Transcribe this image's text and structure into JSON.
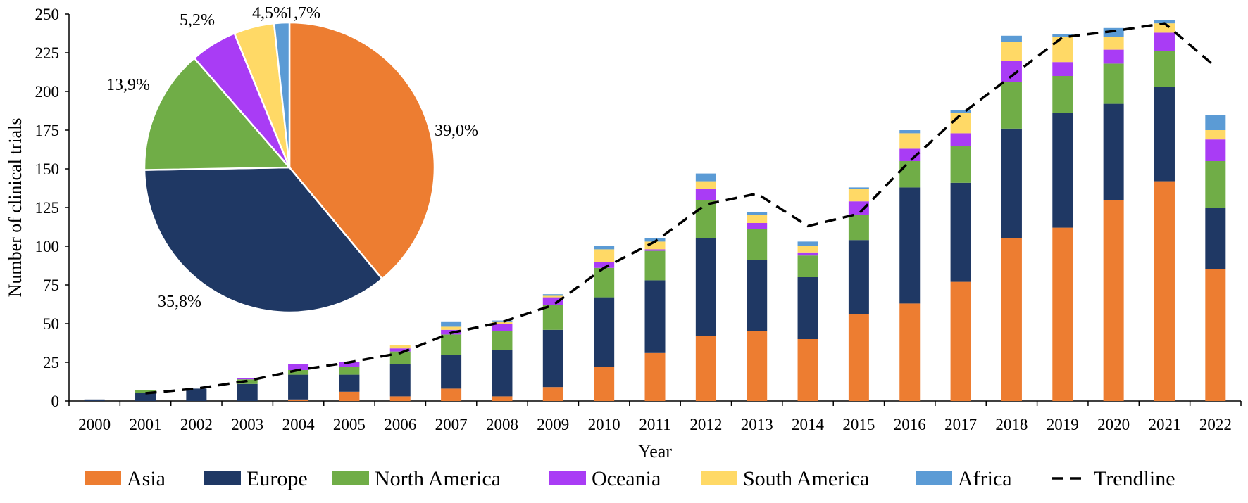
{
  "chart_data": [
    {
      "type": "bar",
      "stacked": true,
      "xlabel": "Year",
      "ylabel": "Number of clinical trials",
      "ylim": [
        0,
        250
      ],
      "yticks": [
        "0",
        "25",
        "50",
        "75",
        "100",
        "125",
        "150",
        "175",
        "200",
        "225",
        "250"
      ],
      "categories": [
        "2000",
        "2001",
        "2002",
        "2003",
        "2004",
        "2005",
        "2006",
        "2007",
        "2008",
        "2009",
        "2010",
        "2011",
        "2012",
        "2013",
        "2014",
        "2015",
        "2016",
        "2017",
        "2018",
        "2019",
        "2020",
        "2021",
        "2022"
      ],
      "series": [
        {
          "name": "Asia",
          "color": "#ED7D31",
          "values": [
            0,
            0,
            0,
            0,
            1,
            6,
            3,
            8,
            3,
            9,
            22,
            31,
            42,
            45,
            40,
            56,
            63,
            77,
            105,
            112,
            130,
            142,
            85
          ]
        },
        {
          "name": "Europe",
          "color": "#1F3864",
          "values": [
            1,
            5,
            8,
            11,
            16,
            11,
            21,
            22,
            30,
            37,
            45,
            47,
            63,
            46,
            40,
            48,
            75,
            64,
            71,
            74,
            62,
            61,
            40
          ]
        },
        {
          "name": "North America",
          "color": "#70AD47",
          "values": [
            0,
            2,
            0,
            3,
            3,
            5,
            8,
            13,
            12,
            16,
            19,
            19,
            25,
            20,
            14,
            16,
            17,
            24,
            30,
            24,
            26,
            23,
            30
          ]
        },
        {
          "name": "Oceania",
          "color": "#A93CF5",
          "values": [
            0,
            0,
            0,
            1,
            4,
            3,
            2,
            3,
            5,
            5,
            4,
            1,
            7,
            4,
            2,
            9,
            8,
            8,
            14,
            9,
            9,
            12,
            14
          ]
        },
        {
          "name": "South America",
          "color": "#FFD966",
          "values": [
            0,
            0,
            0,
            0,
            0,
            0,
            2,
            2,
            1,
            1,
            8,
            5,
            5,
            5,
            4,
            8,
            10,
            13,
            12,
            16,
            8,
            6,
            6
          ]
        },
        {
          "name": "Africa",
          "color": "#5B9BD5",
          "values": [
            0,
            0,
            0,
            0,
            0,
            0,
            0,
            3,
            1,
            1,
            2,
            2,
            5,
            2,
            3,
            1,
            2,
            2,
            4,
            2,
            6,
            2,
            10
          ]
        }
      ],
      "trendline": {
        "name": "Trendline",
        "x": [
          "2001",
          "2002",
          "2003",
          "2004",
          "2005",
          "2006",
          "2007",
          "2008",
          "2009",
          "2010",
          "2011",
          "2012",
          "2013",
          "2014",
          "2015",
          "2016",
          "2017",
          "2018",
          "2019",
          "2020",
          "2021",
          "2022"
        ],
        "values": [
          5,
          8,
          13,
          20,
          25,
          31,
          44,
          51,
          62,
          86,
          103,
          127,
          134,
          113,
          121,
          155,
          185,
          210,
          235,
          239,
          244,
          216
        ]
      }
    },
    {
      "type": "pie",
      "labels": [
        "Asia",
        "Europe",
        "North America",
        "Oceania",
        "South America",
        "Africa"
      ],
      "values": [
        39.0,
        35.8,
        13.9,
        5.2,
        4.5,
        1.7
      ],
      "value_labels": [
        "39,0%",
        "35,8%",
        "13,9%",
        "5,2%",
        "4,5%",
        "1,7%"
      ],
      "colors": [
        "#ED7D31",
        "#1F3864",
        "#70AD47",
        "#A93CF5",
        "#FFD966",
        "#5B9BD5"
      ]
    }
  ],
  "legend": {
    "items": [
      "Asia",
      "Europe",
      "North America",
      "Oceania",
      "South America",
      "Africa",
      "Trendline"
    ],
    "colors": [
      "#ED7D31",
      "#1F3864",
      "#70AD47",
      "#A93CF5",
      "#FFD966",
      "#5B9BD5",
      "#000000"
    ]
  }
}
